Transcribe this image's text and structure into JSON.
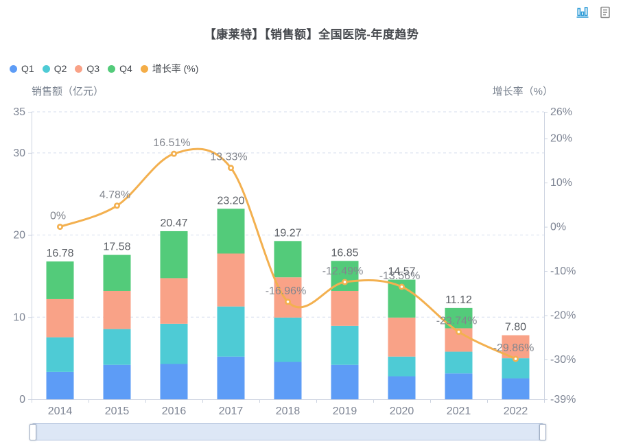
{
  "title": {
    "text": "【康莱特】【销售额】全国医院-年度趋势",
    "color": "#45484d"
  },
  "toolbox": {
    "icons": [
      {
        "name": "bar-chart-icon",
        "color": "#2f9cd7"
      },
      {
        "name": "data-view-icon",
        "color": "#8d8d8d"
      }
    ]
  },
  "legend": {
    "items": [
      {
        "label": "Q1",
        "color": "#5d9cf6"
      },
      {
        "label": "Q2",
        "color": "#4ecbd5"
      },
      {
        "label": "Q3",
        "color": "#f9a287"
      },
      {
        "label": "Q4",
        "color": "#53cb7a"
      },
      {
        "label": "增长率 (%)",
        "color": "#f4ad47"
      }
    ]
  },
  "chart_data": {
    "type": "combo",
    "types": [
      "bar",
      "line"
    ],
    "title": "【康莱特】【销售额】全国医院-年度趋势",
    "categories": [
      "2014",
      "2015",
      "2016",
      "2017",
      "2018",
      "2019",
      "2020",
      "2021",
      "2022"
    ],
    "series": [
      {
        "name": "Q1",
        "type": "bar",
        "stack": "sales",
        "color": "#5d9cf6",
        "values": [
          3.35,
          4.2,
          4.3,
          5.2,
          4.55,
          4.2,
          2.8,
          3.15,
          2.55
        ]
      },
      {
        "name": "Q2",
        "type": "bar",
        "stack": "sales",
        "color": "#4ecbd5",
        "values": [
          4.2,
          4.35,
          4.9,
          6.1,
          5.4,
          4.75,
          2.4,
          2.65,
          2.45
        ]
      },
      {
        "name": "Q3",
        "type": "bar",
        "stack": "sales",
        "color": "#f9a287",
        "values": [
          4.65,
          4.65,
          5.55,
          6.45,
          4.9,
          4.25,
          4.75,
          2.85,
          2.8
        ]
      },
      {
        "name": "Q4",
        "type": "bar",
        "stack": "sales",
        "color": "#53cb7a",
        "values": [
          4.58,
          4.38,
          5.72,
          5.45,
          4.42,
          3.65,
          4.62,
          2.47,
          0
        ]
      },
      {
        "name": "增长率 (%)",
        "type": "line",
        "axis": "right",
        "smooth": true,
        "color": "#f3b04f",
        "values": [
          0,
          4.78,
          16.51,
          13.33,
          -16.96,
          -12.49,
          -13.56,
          -23.74,
          -29.86
        ],
        "labels": [
          "0%",
          "4.78%",
          "16.51%",
          "13.33%",
          "-16.96%",
          "-12.49%",
          "-13.56%",
          "-23.74%",
          "-29.86%"
        ]
      }
    ],
    "totals": {
      "values": [
        16.78,
        17.58,
        20.47,
        23.2,
        19.27,
        16.85,
        14.57,
        11.12,
        7.8
      ],
      "labels": [
        "16.78",
        "17.58",
        "20.47",
        "23.20",
        "19.27",
        "16.85",
        "14.57",
        "11.12",
        "7.80"
      ]
    },
    "left_axis": {
      "name": "销售额（亿元）",
      "min": 0,
      "max": 35,
      "ticks": [
        {
          "value": 35,
          "label": "35"
        },
        {
          "value": 30,
          "label": "30"
        },
        {
          "value": 20,
          "label": "20"
        },
        {
          "value": 10,
          "label": "10"
        },
        {
          "value": 0,
          "label": "0"
        }
      ]
    },
    "right_axis": {
      "name": "增长率（%）",
      "min": -39,
      "max": 26,
      "ticks": [
        {
          "value": 26,
          "label": "26%"
        },
        {
          "value": 20,
          "label": "20%"
        },
        {
          "value": 10,
          "label": "10%"
        },
        {
          "value": 0,
          "label": "0%"
        },
        {
          "value": -10,
          "label": "-10%"
        },
        {
          "value": -20,
          "label": "-20%"
        },
        {
          "value": -30,
          "label": "-30%"
        },
        {
          "value": -39,
          "label": "-39%"
        }
      ]
    },
    "gridlines": [
      35,
      30,
      20,
      10
    ],
    "legend_position": "top-left",
    "grid_on": true,
    "colors": {
      "grid": "#d5deee",
      "axis_line": "#ccd3e0",
      "axis_label": "#7e8594",
      "axis_name": "#79828f",
      "bar_label": "#5a5e64",
      "line_label": "#82868e"
    }
  },
  "datazoom": {
    "track_color": "#dde7f6",
    "border_color": "#b3c3de",
    "handle_color": "#ffffff"
  }
}
